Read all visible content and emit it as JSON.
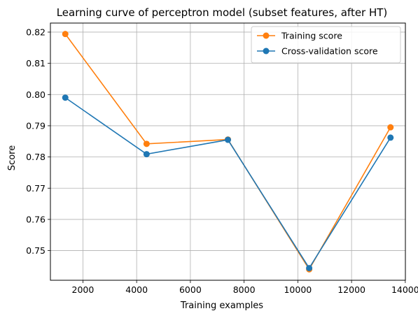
{
  "chart_data": {
    "type": "line",
    "title": "Learning curve of perceptron model (subset features, after HT)",
    "xlabel": "Training examples",
    "ylabel": "Score",
    "x": [
      1344,
      4370,
      7397,
      10423,
      13450
    ],
    "series": [
      {
        "name": "Training score",
        "color": "#ff7f0e",
        "values": [
          0.8194,
          0.7842,
          0.7856,
          0.744,
          0.7895
        ]
      },
      {
        "name": "Cross-validation score",
        "color": "#1f77b4",
        "values": [
          0.799,
          0.7809,
          0.7855,
          0.7444,
          0.7862
        ]
      }
    ],
    "xlim": [
      790,
      14004
    ],
    "ylim": [
      0.7405,
      0.8229
    ],
    "xticks": [
      2000,
      4000,
      6000,
      8000,
      10000,
      12000,
      14000
    ],
    "yticks": [
      0.75,
      0.76,
      0.77,
      0.78,
      0.79,
      0.8,
      0.81,
      0.82
    ],
    "ytick_labels": [
      "0.75",
      "0.76",
      "0.77",
      "0.78",
      "0.79",
      "0.80",
      "0.81",
      "0.82"
    ],
    "grid": true,
    "legend_position": "top-right"
  }
}
